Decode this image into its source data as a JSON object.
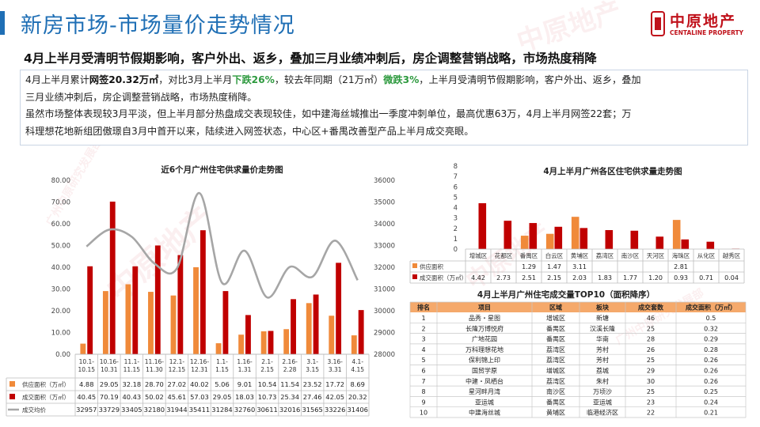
{
  "header": {
    "title": "新房市场-市场量价走势情况",
    "subtitle": "4月上半月受清明节假期影响，客户外出、返乡，叠加三月业绩冲刺后，房企调整营销战略，市场热度稍降"
  },
  "logo": {
    "cn": "中原地产",
    "en": "CENTALINE PROPERTY"
  },
  "watermarks": [
    "中原地产",
    "CENTALINE PROPERTY",
    "广州中原研究发展部"
  ],
  "summary": {
    "line1": [
      {
        "t": "4月上半月累计",
        "s": "n"
      },
      {
        "t": "网签20.32万㎡",
        "s": "b"
      },
      {
        "t": "，对比3月上半月",
        "s": "n"
      },
      {
        "t": "下跌26%",
        "s": "g"
      },
      {
        "t": "，较去年同期（21万㎡）",
        "s": "n"
      },
      {
        "t": "微跌3%",
        "s": "g"
      },
      {
        "t": "，上半月受清明节假期影响，客户外出、返乡，叠加",
        "s": "n"
      }
    ],
    "line2": "三月业绩冲刺后，房企调整营销战略，市场热度稍降。",
    "line3": "虽然市场整体表现较3月平淡，但上半月部分热盘成交表现较佳，如中建海丝城推出一季度冲刺单位，最高优惠63万，4月上半月网签22套；万",
    "line4": "科理想花地新组团傲璟自3月中首开以来，陆续进入网签状态，中心区+番禺改善型产品上半月成交亮眼。"
  },
  "chart_data": [
    {
      "type": "bar",
      "title": "近6个月广州住宅供求量价走势图",
      "categories": [
        "10.1-10.15",
        "10.16-10.31",
        "11.1-11.15",
        "11.16-11.30",
        "12.1-12.15",
        "12.16-12.31",
        "1.1-1.15",
        "1.16-1.31",
        "2.1-2.15",
        "2.16-2.28",
        "3.1-3.15",
        "3.16-3.31",
        "4.1-4.15"
      ],
      "series": [
        {
          "name": "供应面积（万㎡）",
          "color": "#f08a3a",
          "axis": "left",
          "values": [
            4.88,
            29.05,
            32.18,
            28.7,
            27.02,
            40.02,
            5.06,
            9.01,
            10.54,
            11.54,
            23.52,
            17.72,
            8.69
          ],
          "labels": [
            "4.88",
            "29.05",
            "32.18",
            "28.70",
            "27.02",
            "40.02",
            "5.06",
            "9.01",
            "10.54",
            "11.54",
            "23.52",
            "17.72",
            "8.69"
          ]
        },
        {
          "name": "成交面积（万㎡）",
          "color": "#c00000",
          "axis": "left",
          "values": [
            40.45,
            70.19,
            40.43,
            50.02,
            45.61,
            57.03,
            29.05,
            18.03,
            10.73,
            25.34,
            27.46,
            42.05,
            20.32
          ],
          "labels": [
            "40.45",
            "70.19",
            "40.43",
            "50.02",
            "45.61",
            "57.03",
            "29.05",
            "18.03",
            "10.73",
            "25.34",
            "27.46",
            "42.05",
            "20.32"
          ]
        },
        {
          "name": "成交均价",
          "color": "#a6a6a6",
          "axis": "right",
          "type": "line",
          "values": [
            32957,
            33729,
            33405,
            32180,
            31944,
            35411,
            31284,
            32760,
            30611,
            32016,
            31565,
            33226,
            31406
          ],
          "labels": [
            "32957",
            "33729",
            "33405",
            "32180",
            "31944",
            "35411",
            "31284",
            "32760",
            "30611",
            "32016",
            "31565",
            "33226",
            "31406"
          ]
        }
      ],
      "left_axis": {
        "min": 0,
        "max": 80,
        "step": 10,
        "ticks": [
          "0.00",
          "10.00",
          "20.00",
          "30.00",
          "40.00",
          "50.00",
          "60.00",
          "70.00",
          "80.00"
        ]
      },
      "right_axis": {
        "min": 28000,
        "max": 36000,
        "step": 1000,
        "ticks": [
          "28000",
          "29000",
          "30000",
          "31000",
          "32000",
          "33000",
          "34000",
          "35000",
          "36000"
        ]
      }
    },
    {
      "type": "bar",
      "title": "4月上半月广州各区住宅供求量走势图",
      "categories": [
        "增城区",
        "花都区",
        "番禺区",
        "白云区",
        "黄埔区",
        "荔湾区",
        "南沙区",
        "天河区",
        "海珠区",
        "从化区",
        "越秀区"
      ],
      "series": [
        {
          "name": "供应面积",
          "color": "#f08a3a",
          "values": [
            0,
            0,
            1.29,
            1.47,
            3.11,
            0,
            0,
            0,
            2.81,
            0,
            0
          ],
          "labels": [
            "",
            "",
            "1.29",
            "1.47",
            "3.11",
            "",
            "",
            "",
            "2.81",
            "",
            ""
          ]
        },
        {
          "name": "成交面积（万㎡）",
          "color": "#c00000",
          "values": [
            4.42,
            2.73,
            2.51,
            2.15,
            2.03,
            1.83,
            1.77,
            1.2,
            0.93,
            0.71,
            0.04
          ],
          "labels": [
            "4.42",
            "2.73",
            "2.51",
            "2.15",
            "2.03",
            "1.83",
            "1.77",
            "1.20",
            "0.93",
            "0.71",
            "0.04"
          ]
        }
      ],
      "left_axis": {
        "min": 0,
        "max": 8,
        "step": 1,
        "ticks": [
          "0",
          "1",
          "2",
          "3",
          "4",
          "5",
          "6",
          "7",
          "8"
        ]
      }
    },
    {
      "type": "table",
      "title": "4月上半月广州住宅成交量TOP10（面积降序）",
      "columns": [
        "排名",
        "项目",
        "区域",
        "板块",
        "成交套数",
        "成交面积（万㎡）"
      ],
      "rows": [
        [
          "1",
          "品秀・星图",
          "增城区",
          "新塘",
          "46",
          "0.5"
        ],
        [
          "2",
          "长隆万博悦府",
          "番禺区",
          "汉溪长隆",
          "25",
          "0.32"
        ],
        [
          "3",
          "广地花园",
          "番禺区",
          "华南",
          "28",
          "0.29"
        ],
        [
          "4",
          "万科理想花地",
          "荔湾区",
          "芳村",
          "26",
          "0.28"
        ],
        [
          "5",
          "保利锦上印",
          "荔湾区",
          "芳村",
          "25",
          "0.26"
        ],
        [
          "6",
          "国贸学原",
          "增城区",
          "荔城",
          "29",
          "0.26"
        ],
        [
          "7",
          "中建・凤栖台",
          "荔湾区",
          "朱村",
          "30",
          "0.26"
        ],
        [
          "8",
          "星河畔月湾",
          "南沙区",
          "万顷沙",
          "25",
          "0.25"
        ],
        [
          "9",
          "亚运城",
          "番禺区",
          "亚运城",
          "23",
          "0.24"
        ],
        [
          "10",
          "中建海丝城",
          "黄埔区",
          "临港经济区",
          "22",
          "0.21"
        ]
      ]
    }
  ]
}
